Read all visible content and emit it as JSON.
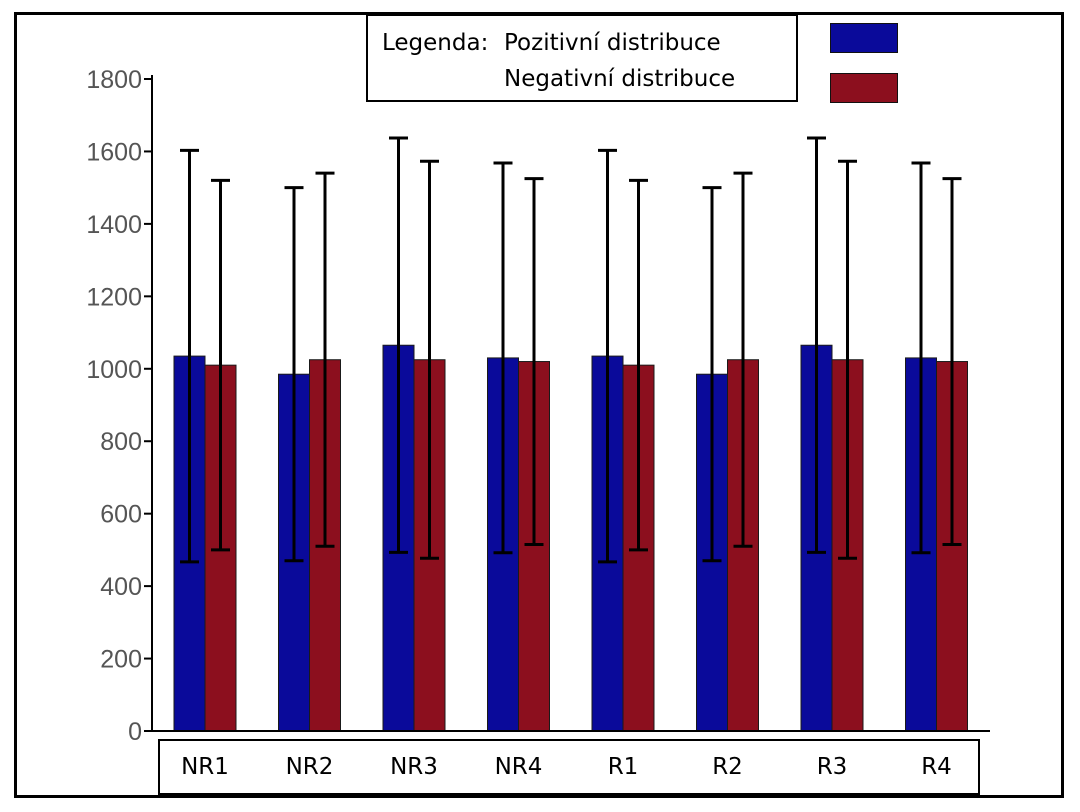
{
  "chart_data": {
    "type": "bar",
    "categories": [
      "NR1",
      "NR2",
      "NR3",
      "NR4",
      "R1",
      "R2",
      "R3",
      "R4"
    ],
    "series": [
      {
        "name": "Pozitivní distribuce",
        "values": [
          1035,
          985,
          1065,
          1030,
          1035,
          985,
          1065,
          1030
        ],
        "error": [
          568,
          515,
          572,
          538,
          568,
          515,
          572,
          538
        ]
      },
      {
        "name": "Negativní distribuce",
        "values": [
          1010,
          1025,
          1025,
          1020,
          1010,
          1025,
          1025,
          1020
        ],
        "error": [
          510,
          515,
          548,
          505,
          510,
          515,
          548,
          505
        ]
      }
    ],
    "yticks": [
      0,
      200,
      400,
      600,
      800,
      1000,
      1200,
      1400,
      1600,
      1800
    ],
    "ylim": [
      0,
      1800
    ],
    "title": "",
    "xlabel": "",
    "ylabel": "",
    "grid": false,
    "legend_position": "top-right"
  },
  "legend": {
    "prefix": "Legenda:",
    "entries": [
      "Pozitivní distribuce",
      "Negativní distribuce"
    ]
  },
  "colors": {
    "positive": "#0a0a9a",
    "negative": "#8c0f1e",
    "axis": "#000000",
    "background": "#ffffff"
  }
}
